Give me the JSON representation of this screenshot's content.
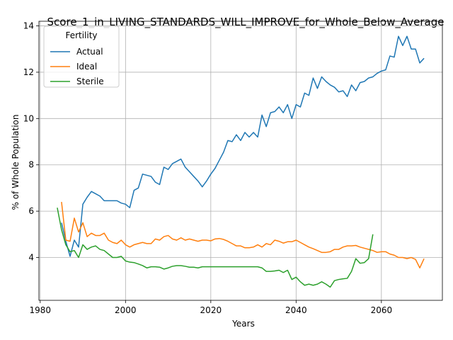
{
  "chart_data": {
    "type": "line",
    "title": "Score_1_in_LIVING_STANDARDS_WILL_IMPROVE_for_Whole_Below_Average",
    "xlabel": "Years",
    "ylabel": "% of Whole Population",
    "xlim": [
      1979.7,
      2074.3
    ],
    "ylim": [
      2.15,
      14.2
    ],
    "x_ticks": [
      1980,
      2000,
      2020,
      2040,
      2060
    ],
    "y_ticks": [
      4,
      6,
      8,
      10,
      12,
      14
    ],
    "grid": true,
    "legend": {
      "title": "Fertility",
      "placement": "upper-left"
    },
    "series": [
      {
        "name": "Actual",
        "color": "#1f77b4",
        "x": [
          1985,
          1986,
          1987,
          1988,
          1989,
          1990,
          1991,
          1992,
          1993,
          1994,
          1995,
          1996,
          1997,
          1998,
          1999,
          2000,
          2001,
          2002,
          2003,
          2004,
          2005,
          2006,
          2007,
          2008,
          2009,
          2010,
          2011,
          2012,
          2013,
          2014,
          2015,
          2016,
          2017,
          2018,
          2019,
          2020,
          2021,
          2022,
          2023,
          2024,
          2025,
          2026,
          2027,
          2028,
          2029,
          2030,
          2031,
          2032,
          2033,
          2034,
          2035,
          2036,
          2037,
          2038,
          2039,
          2040,
          2041,
          2042,
          2043,
          2044,
          2045,
          2046,
          2047,
          2048,
          2049,
          2050,
          2051,
          2052,
          2053,
          2054,
          2055,
          2056,
          2057,
          2058,
          2059,
          2060,
          2061,
          2062,
          2063,
          2064,
          2065,
          2066,
          2067,
          2068,
          2069,
          2070
        ],
        "values": [
          5.5,
          4.7,
          4.05,
          4.75,
          4.45,
          6.3,
          6.6,
          6.85,
          6.75,
          6.65,
          6.45,
          6.45,
          6.45,
          6.45,
          6.35,
          6.3,
          6.15,
          6.9,
          7.0,
          7.6,
          7.55,
          7.5,
          7.25,
          7.15,
          7.9,
          7.8,
          8.05,
          8.15,
          8.25,
          7.9,
          7.7,
          7.5,
          7.3,
          7.05,
          7.3,
          7.6,
          7.85,
          8.2,
          8.55,
          9.05,
          9.0,
          9.3,
          9.05,
          9.4,
          9.2,
          9.4,
          9.2,
          10.15,
          9.65,
          10.25,
          10.3,
          10.5,
          10.25,
          10.6,
          10.0,
          10.6,
          10.5,
          11.1,
          11.0,
          11.75,
          11.3,
          11.8,
          11.6,
          11.45,
          11.35,
          11.15,
          11.2,
          10.95,
          11.45,
          11.2,
          11.55,
          11.6,
          11.75,
          11.8,
          11.95,
          12.05,
          12.1,
          12.7,
          12.65,
          13.55,
          13.15,
          13.55,
          13.0,
          13.0,
          12.4,
          12.6
        ]
      },
      {
        "name": "Ideal",
        "color": "#ff7f0e",
        "x": [
          1985,
          1986,
          1987,
          1988,
          1989,
          1990,
          1991,
          1992,
          1993,
          1994,
          1995,
          1996,
          1997,
          1998,
          1999,
          2000,
          2001,
          2002,
          2003,
          2004,
          2005,
          2006,
          2007,
          2008,
          2009,
          2010,
          2011,
          2012,
          2013,
          2014,
          2015,
          2016,
          2017,
          2018,
          2019,
          2020,
          2021,
          2022,
          2023,
          2024,
          2025,
          2026,
          2027,
          2028,
          2029,
          2030,
          2031,
          2032,
          2033,
          2034,
          2035,
          2036,
          2037,
          2038,
          2039,
          2040,
          2041,
          2042,
          2043,
          2044,
          2045,
          2046,
          2047,
          2048,
          2049,
          2050,
          2051,
          2052,
          2053,
          2054,
          2055,
          2056,
          2057,
          2058,
          2059,
          2060,
          2061,
          2062,
          2063,
          2064,
          2065,
          2066,
          2067,
          2068,
          2069,
          2070
        ],
        "values": [
          6.4,
          4.75,
          4.7,
          5.7,
          5.1,
          5.5,
          4.9,
          5.05,
          4.95,
          4.95,
          5.05,
          4.75,
          4.65,
          4.6,
          4.75,
          4.55,
          4.45,
          4.55,
          4.6,
          4.65,
          4.6,
          4.6,
          4.8,
          4.75,
          4.9,
          4.95,
          4.8,
          4.75,
          4.85,
          4.75,
          4.8,
          4.75,
          4.7,
          4.75,
          4.75,
          4.72,
          4.8,
          4.82,
          4.78,
          4.7,
          4.6,
          4.5,
          4.5,
          4.42,
          4.42,
          4.45,
          4.55,
          4.45,
          4.6,
          4.55,
          4.75,
          4.7,
          4.62,
          4.68,
          4.68,
          4.75,
          4.65,
          4.55,
          4.45,
          4.38,
          4.3,
          4.22,
          4.22,
          4.25,
          4.35,
          4.35,
          4.45,
          4.5,
          4.5,
          4.52,
          4.45,
          4.4,
          4.35,
          4.3,
          4.22,
          4.25,
          4.25,
          4.15,
          4.1,
          4.0,
          4.0,
          3.95,
          4.0,
          3.92,
          3.55,
          3.95
        ]
      },
      {
        "name": "Sterile",
        "color": "#2ca02c",
        "x": [
          1984,
          1985,
          1986,
          1987,
          1988,
          1989,
          1990,
          1991,
          1992,
          1993,
          1994,
          1995,
          1996,
          1997,
          1998,
          1999,
          2000,
          2001,
          2002,
          2003,
          2004,
          2005,
          2006,
          2007,
          2008,
          2009,
          2010,
          2011,
          2012,
          2013,
          2014,
          2015,
          2016,
          2017,
          2018,
          2019,
          2020,
          2021,
          2022,
          2023,
          2024,
          2025,
          2026,
          2027,
          2028,
          2029,
          2030,
          2031,
          2032,
          2033,
          2034,
          2035,
          2036,
          2037,
          2038,
          2039,
          2040,
          2041,
          2042,
          2043,
          2044,
          2045,
          2046,
          2047,
          2048,
          2049,
          2050,
          2051,
          2052,
          2053,
          2054,
          2055,
          2056,
          2057,
          2058
        ],
        "values": [
          6.15,
          5.2,
          4.55,
          4.25,
          4.3,
          4.0,
          4.55,
          4.35,
          4.45,
          4.5,
          4.35,
          4.3,
          4.15,
          4.0,
          4.0,
          4.05,
          3.85,
          3.8,
          3.78,
          3.72,
          3.65,
          3.55,
          3.6,
          3.6,
          3.58,
          3.5,
          3.55,
          3.62,
          3.65,
          3.65,
          3.62,
          3.58,
          3.58,
          3.55,
          3.6,
          3.6,
          3.6,
          3.6,
          3.6,
          3.6,
          3.6,
          3.6,
          3.6,
          3.6,
          3.6,
          3.6,
          3.6,
          3.6,
          3.55,
          3.4,
          3.4,
          3.42,
          3.45,
          3.35,
          3.45,
          3.05,
          3.15,
          2.95,
          2.8,
          2.85,
          2.8,
          2.85,
          2.95,
          2.85,
          2.72,
          3.0,
          3.05,
          3.08,
          3.1,
          3.4,
          3.95,
          3.75,
          3.78,
          3.95,
          5.0
        ]
      }
    ]
  }
}
